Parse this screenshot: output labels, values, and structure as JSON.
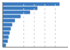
{
  "chart_data": {
    "type": "bar",
    "orientation": "horizontal",
    "categories": [
      null,
      null,
      null,
      null,
      null,
      null,
      null,
      null,
      null,
      null,
      null
    ],
    "values": [
      270,
      165,
      130,
      85,
      58,
      45,
      38,
      33,
      28,
      24,
      15
    ],
    "color": "#3a7abf",
    "xlim": [
      0,
      310
    ],
    "xticks": [
      100,
      150,
      200,
      250
    ],
    "grid": true,
    "tick_labels": false
  }
}
